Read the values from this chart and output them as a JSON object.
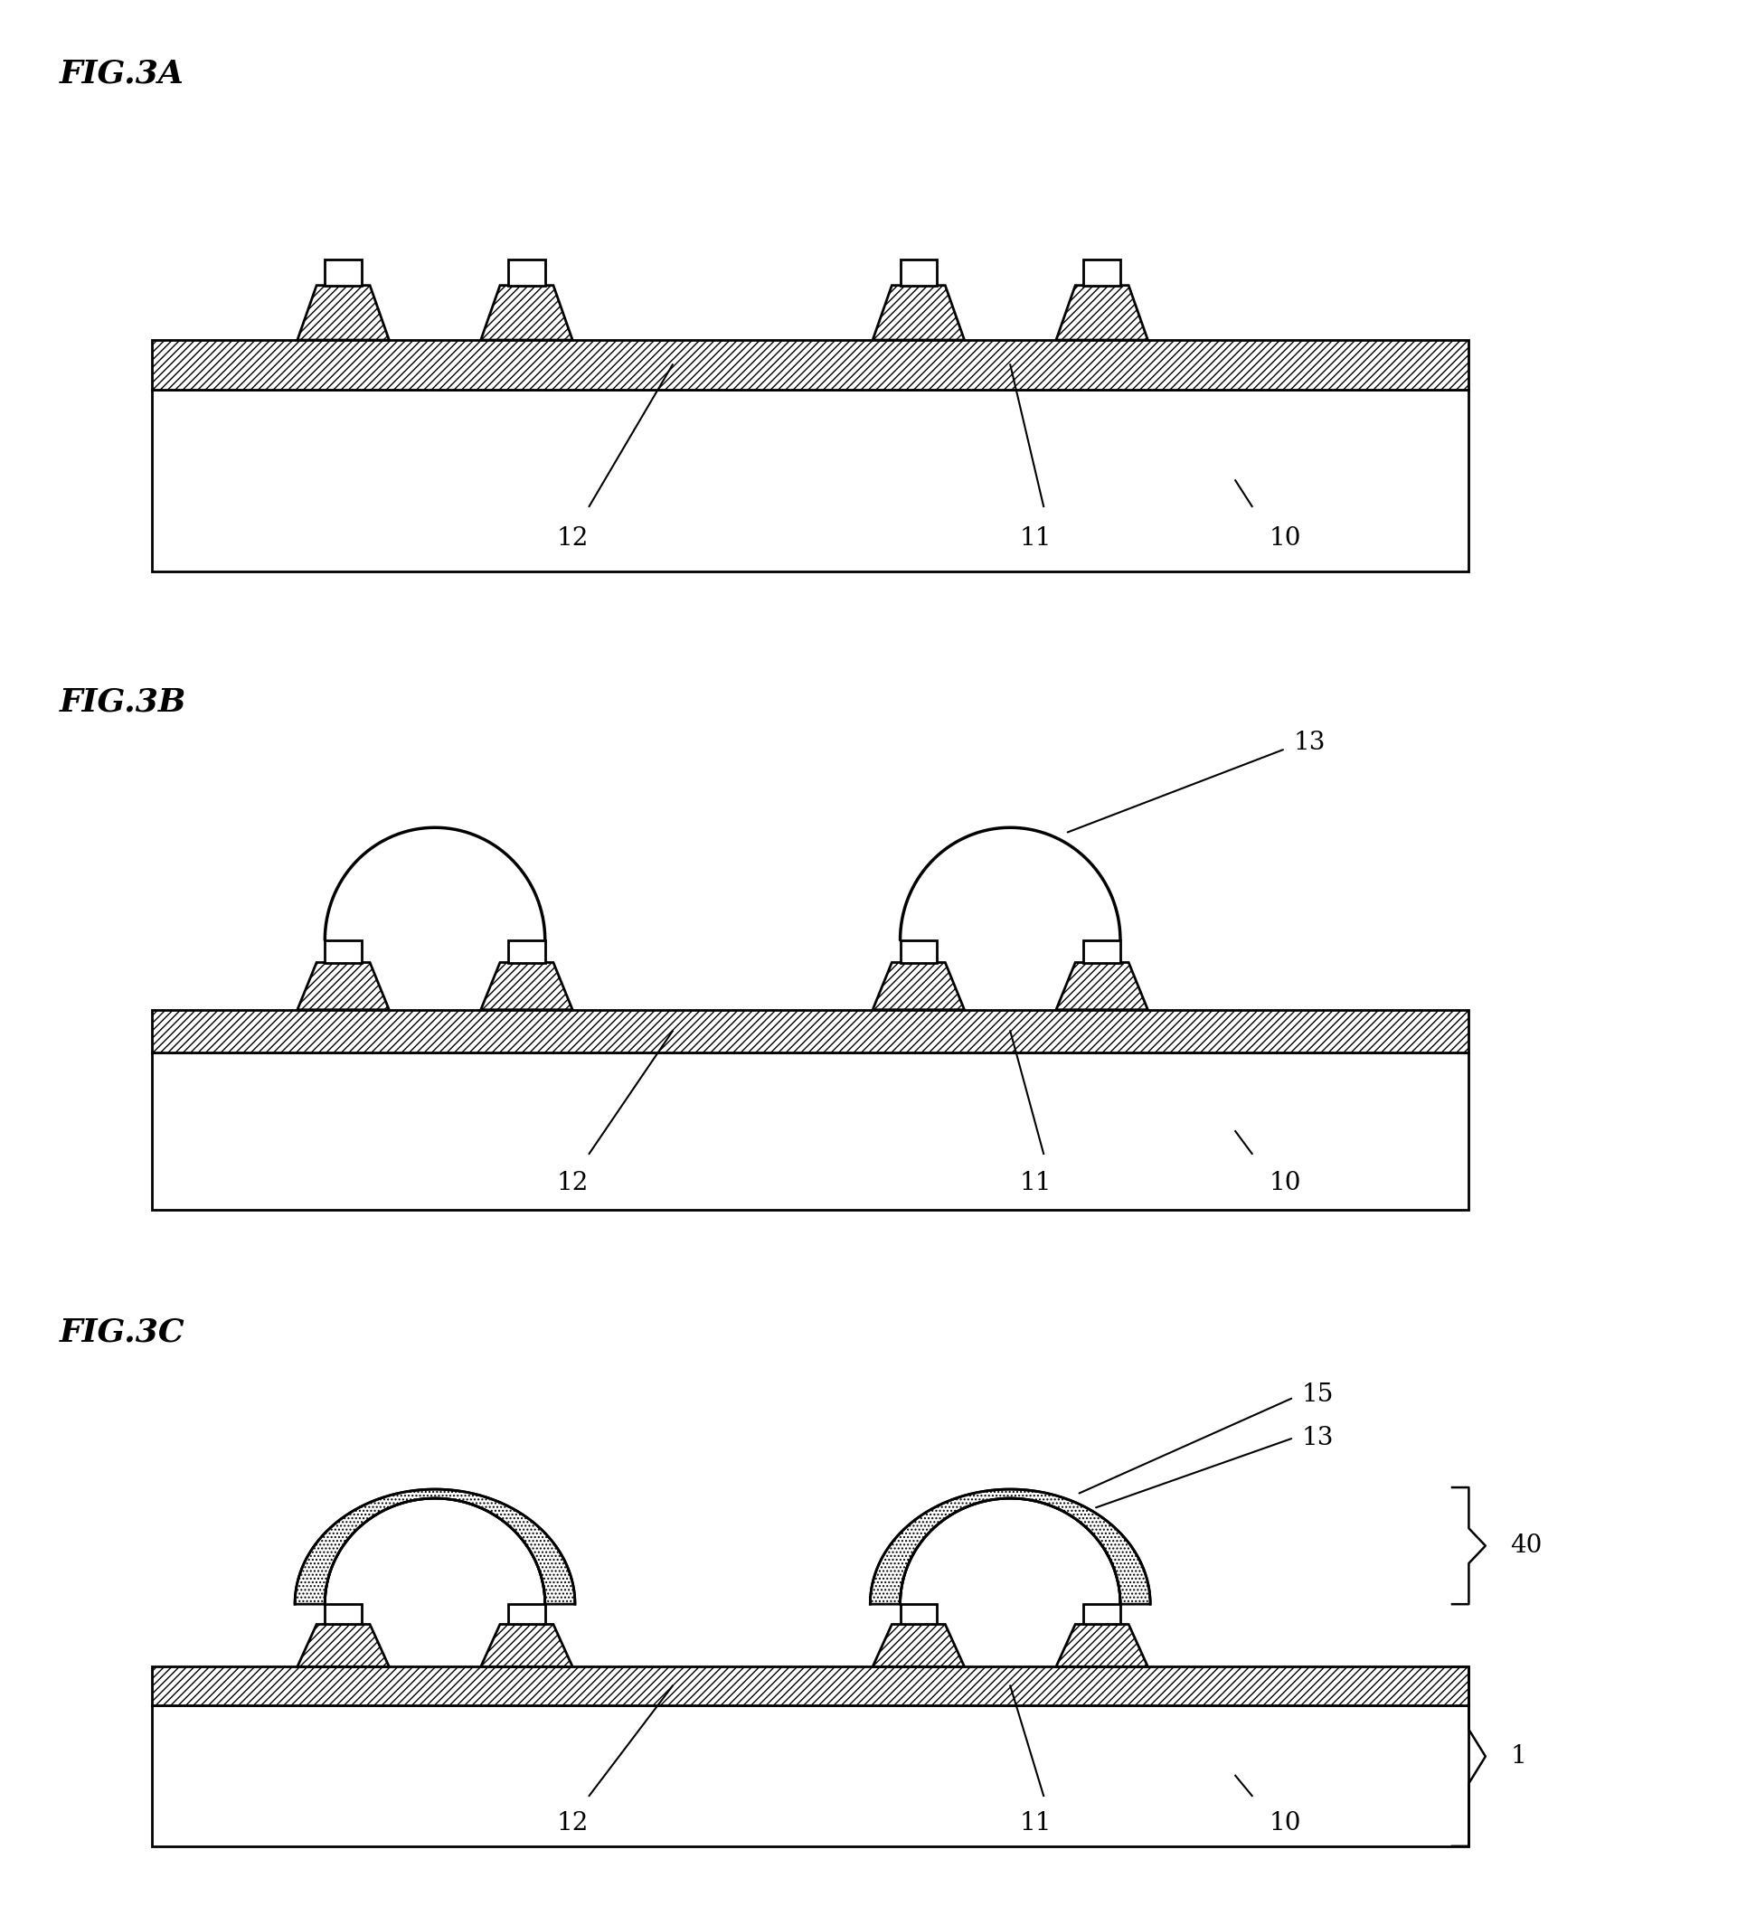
{
  "bg_color": "#ffffff",
  "line_color": "#000000",
  "fig_label_fontsize": 26,
  "annotation_fontsize": 20,
  "lw": 2.0,
  "figA_label": "FIG.3A",
  "figB_label": "FIG.3B",
  "figC_label": "FIG.3C",
  "labels_10": "10",
  "labels_11": "11",
  "labels_12": "12",
  "labels_13": "13",
  "labels_15": "15",
  "labels_40": "40",
  "labels_1": "1"
}
